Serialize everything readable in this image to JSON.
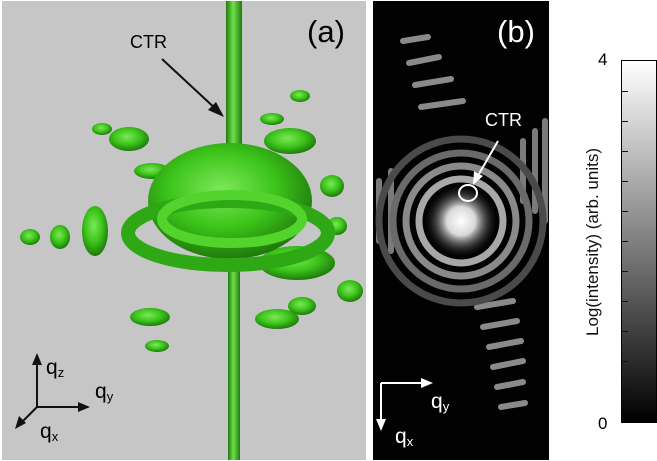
{
  "figure": {
    "panel_a": {
      "label": "(a)",
      "ctr_label": "CTR",
      "axes": {
        "z": "q",
        "z_sub": "z",
        "y": "q",
        "y_sub": "y",
        "x": "q",
        "x_sub": "x"
      },
      "surface_color": "#3cc41a",
      "background_color": "#c6c6c6"
    },
    "panel_b": {
      "label": "(b)",
      "ctr_label": "CTR",
      "axes": {
        "y": "q",
        "y_sub": "y",
        "x": "q",
        "x_sub": "x"
      },
      "background_color": "#020202"
    },
    "colorbar": {
      "label": "Log(intensity) (arb. units)",
      "max_label": "4",
      "min_label": "0",
      "gradient": [
        "#000000",
        "#ffffff"
      ]
    }
  }
}
